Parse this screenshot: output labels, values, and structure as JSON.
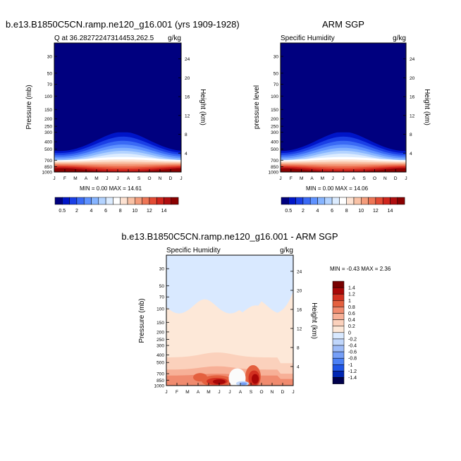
{
  "chart_data": [
    {
      "type": "heatmap",
      "title": "b.e13.B1850C5CN.ramp.ne120_g16.001 (yrs 1909-1928)",
      "subtitle_left": "Q at 36.28272247314453,262.5",
      "subtitle_right": "g/kg",
      "ylabel": "Pressure (mb)",
      "ylabel_right": "Height (km)",
      "x_ticks": [
        "J",
        "F",
        "M",
        "A",
        "M",
        "J",
        "J",
        "A",
        "S",
        "O",
        "N",
        "D",
        "J"
      ],
      "y_ticks": [
        "30",
        "50",
        "70",
        "100",
        "150",
        "200",
        "250",
        "300",
        "400",
        "500",
        "700",
        "850",
        "1000"
      ],
      "y_right_ticks": [
        "24",
        "20",
        "16",
        "12",
        "8",
        "4"
      ],
      "stats": "MIN =   0.00 MAX =  14.61",
      "colorbar_labels": [
        "0.5",
        "2",
        "4",
        "6",
        "8",
        "10",
        "12",
        "14"
      ],
      "peak_month": 6.5,
      "max_value": 14.61
    },
    {
      "type": "heatmap",
      "title": "ARM SGP",
      "subtitle_left": "Specific Humidity",
      "subtitle_right": "g/kg",
      "ylabel": "pressure level",
      "ylabel_right": "Height (km)",
      "x_ticks": [
        "J",
        "F",
        "M",
        "A",
        "M",
        "J",
        "J",
        "A",
        "S",
        "O",
        "N",
        "D",
        "J"
      ],
      "y_ticks": [
        "30",
        "50",
        "70",
        "100",
        "150",
        "200",
        "250",
        "300",
        "400",
        "500",
        "700",
        "850",
        "1000"
      ],
      "y_right_ticks": [
        "24",
        "20",
        "16",
        "12",
        "8",
        "4"
      ],
      "stats": "MIN =   0.00 MAX =  14.06",
      "colorbar_labels": [
        "0.5",
        "2",
        "4",
        "6",
        "8",
        "10",
        "12",
        "14"
      ],
      "peak_month": 6.0,
      "max_value": 14.06
    },
    {
      "type": "heatmap",
      "title": "b.e13.B1850C5CN.ramp.ne120_g16.001 - ARM SGP",
      "subtitle_left": "Specific Humidity",
      "subtitle_right": "g/kg",
      "ylabel": "Pressure (mb)",
      "ylabel_right": "Height (km)",
      "x_ticks": [
        "J",
        "F",
        "M",
        "A",
        "M",
        "J",
        "J",
        "A",
        "S",
        "O",
        "N",
        "D",
        "J"
      ],
      "y_ticks": [
        "30",
        "50",
        "70",
        "100",
        "150",
        "200",
        "250",
        "300",
        "400",
        "500",
        "700",
        "850",
        "1000"
      ],
      "y_right_ticks": [
        "24",
        "20",
        "16",
        "12",
        "8",
        "4"
      ],
      "stats": "MIN =  -0.43 MAX =   2.36",
      "colorbar_labels": [
        "1.4",
        "1.2",
        "1",
        "0.8",
        "0.6",
        "0.4",
        "0.2",
        "0",
        "-0.2",
        "-0.4",
        "-0.6",
        "-0.8",
        "-1",
        "-1.2",
        "-1.4"
      ]
    }
  ],
  "colors": {
    "model_scale": [
      "#00007f",
      "#0015c8",
      "#1a3fe6",
      "#3a6af5",
      "#5f92ff",
      "#86b4ff",
      "#b3d3ff",
      "#dcecff",
      "#ffffff",
      "#fde2d2",
      "#f9c2a6",
      "#f49d7c",
      "#ee7656",
      "#e34b34",
      "#d0261d",
      "#b00e10",
      "#8a0000"
    ],
    "diff_scale": [
      "#00004c",
      "#0026b3",
      "#1f55e6",
      "#4b80f5",
      "#769ff7",
      "#9dbbf7",
      "#c0d6fb",
      "#d9e9ff",
      "#fde8d8",
      "#fbd1bc",
      "#f7b097",
      "#f08b6f",
      "#e4603f",
      "#d23020",
      "#a80707",
      "#780000"
    ]
  }
}
